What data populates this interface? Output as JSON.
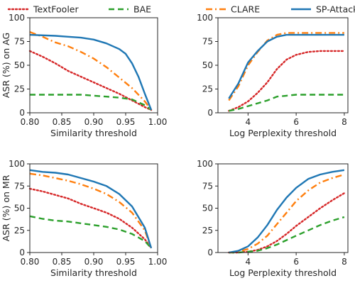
{
  "legend": {
    "placement": "top",
    "items": [
      {
        "name": "TextFooler",
        "color": "#d62728",
        "style": "dotted"
      },
      {
        "name": "BAE",
        "color": "#2ca02c",
        "style": "dashed"
      },
      {
        "name": "CLARE",
        "color": "#ff7f0e",
        "style": "dashdot"
      },
      {
        "name": "SP-Attack",
        "color": "#1f77b4",
        "style": "solid"
      }
    ]
  },
  "chart_data": [
    {
      "type": "line",
      "xlabel": "Similarity threshold",
      "ylabel": "ASR (%) on AG",
      "xlim": [
        0.8,
        1.0
      ],
      "ylim": [
        0,
        100
      ],
      "xticks": [
        "0.80",
        "0.85",
        "0.90",
        "0.95",
        "1.00"
      ],
      "yticks": [
        "0",
        "25",
        "50",
        "75",
        "100"
      ],
      "grid": false,
      "series": [
        {
          "name": "TextFooler",
          "x": [
            0.8,
            0.82,
            0.84,
            0.86,
            0.88,
            0.9,
            0.92,
            0.94,
            0.96,
            0.98,
            0.99
          ],
          "y": [
            65,
            59,
            52,
            44,
            38,
            32,
            26,
            20,
            13,
            6,
            3
          ]
        },
        {
          "name": "BAE",
          "x": [
            0.8,
            0.84,
            0.88,
            0.9,
            0.92,
            0.94,
            0.96,
            0.98,
            0.99
          ],
          "y": [
            19,
            19,
            19,
            18,
            17,
            16,
            14,
            8,
            3
          ]
        },
        {
          "name": "CLARE",
          "x": [
            0.8,
            0.82,
            0.84,
            0.86,
            0.88,
            0.9,
            0.92,
            0.94,
            0.96,
            0.98,
            0.99
          ],
          "y": [
            85,
            80,
            74,
            70,
            64,
            57,
            48,
            37,
            26,
            12,
            3
          ]
        },
        {
          "name": "SP-Attack",
          "x": [
            0.8,
            0.84,
            0.86,
            0.88,
            0.9,
            0.92,
            0.94,
            0.95,
            0.96,
            0.97,
            0.98,
            0.99
          ],
          "y": [
            82,
            81,
            80,
            79,
            77,
            73,
            67,
            62,
            52,
            38,
            20,
            3
          ]
        }
      ]
    },
    {
      "type": "line",
      "xlabel": "Log Perplexity threshold",
      "ylabel": "",
      "xlim": [
        2.75,
        8.15
      ],
      "ylim": [
        0,
        100
      ],
      "xticks": [
        "4",
        "6",
        "8"
      ],
      "yticks": [
        "0",
        "25",
        "50",
        "75",
        "100"
      ],
      "grid": false,
      "series": [
        {
          "name": "TextFooler",
          "x": [
            3.2,
            3.6,
            4.0,
            4.4,
            4.8,
            5.2,
            5.6,
            6.0,
            6.5,
            7.0,
            8.0
          ],
          "y": [
            2,
            6,
            12,
            21,
            32,
            46,
            56,
            61,
            64,
            65,
            65
          ]
        },
        {
          "name": "BAE",
          "x": [
            3.2,
            3.6,
            4.0,
            4.4,
            4.8,
            5.2,
            5.6,
            6.0,
            7.0,
            8.0
          ],
          "y": [
            2,
            4,
            7,
            10,
            13,
            17,
            18,
            19,
            19,
            19
          ]
        },
        {
          "name": "CLARE",
          "x": [
            3.2,
            3.6,
            4.0,
            4.4,
            4.8,
            5.2,
            5.6,
            6.0,
            7.0,
            8.0
          ],
          "y": [
            13,
            28,
            50,
            64,
            76,
            82,
            84,
            84,
            84,
            84
          ]
        },
        {
          "name": "SP-Attack",
          "x": [
            3.2,
            3.6,
            4.0,
            4.4,
            4.8,
            5.2,
            5.6,
            6.0,
            7.0,
            8.0
          ],
          "y": [
            15,
            31,
            53,
            65,
            75,
            80,
            82,
            82,
            82,
            82
          ]
        }
      ]
    },
    {
      "type": "line",
      "xlabel": "Similarity threshold",
      "ylabel": "ASR (%) on MR",
      "xlim": [
        0.8,
        1.0
      ],
      "ylim": [
        0,
        100
      ],
      "xticks": [
        "0.80",
        "0.85",
        "0.90",
        "0.95",
        "1.00"
      ],
      "yticks": [
        "0",
        "25",
        "50",
        "75",
        "100"
      ],
      "grid": false,
      "series": [
        {
          "name": "TextFooler",
          "x": [
            0.8,
            0.82,
            0.84,
            0.86,
            0.88,
            0.9,
            0.92,
            0.94,
            0.96,
            0.98,
            0.99
          ],
          "y": [
            72,
            69,
            65,
            61,
            55,
            50,
            45,
            38,
            28,
            15,
            5
          ]
        },
        {
          "name": "BAE",
          "x": [
            0.8,
            0.82,
            0.84,
            0.86,
            0.88,
            0.9,
            0.92,
            0.94,
            0.96,
            0.98,
            0.99
          ],
          "y": [
            41,
            38,
            36,
            35,
            33,
            31,
            29,
            26,
            21,
            13,
            5
          ]
        },
        {
          "name": "CLARE",
          "x": [
            0.8,
            0.82,
            0.84,
            0.86,
            0.88,
            0.9,
            0.92,
            0.94,
            0.96,
            0.98,
            0.99
          ],
          "y": [
            89,
            87,
            84,
            81,
            77,
            72,
            66,
            57,
            45,
            25,
            5
          ]
        },
        {
          "name": "SP-Attack",
          "x": [
            0.8,
            0.82,
            0.84,
            0.86,
            0.88,
            0.9,
            0.92,
            0.94,
            0.96,
            0.98,
            0.99
          ],
          "y": [
            93,
            91,
            90,
            88,
            84,
            80,
            75,
            66,
            52,
            28,
            5
          ]
        }
      ]
    },
    {
      "type": "line",
      "xlabel": "Log Perplexity threshold",
      "ylabel": "",
      "xlim": [
        2.75,
        8.15
      ],
      "ylim": [
        0,
        100
      ],
      "xticks": [
        "4",
        "6",
        "8"
      ],
      "yticks": [
        "0",
        "25",
        "50",
        "75",
        "100"
      ],
      "grid": false,
      "series": [
        {
          "name": "TextFooler",
          "x": [
            3.2,
            3.6,
            4.0,
            4.4,
            4.8,
            5.2,
            5.6,
            6.0,
            6.5,
            7.0,
            7.5,
            8.0
          ],
          "y": [
            0,
            0,
            1,
            3,
            7,
            13,
            21,
            30,
            40,
            50,
            59,
            67
          ]
        },
        {
          "name": "BAE",
          "x": [
            3.2,
            3.6,
            4.0,
            4.4,
            4.8,
            5.2,
            5.6,
            6.0,
            6.5,
            7.0,
            7.5,
            8.0
          ],
          "y": [
            0,
            0,
            1,
            2,
            5,
            9,
            14,
            19,
            25,
            31,
            36,
            40
          ]
        },
        {
          "name": "CLARE",
          "x": [
            3.2,
            3.6,
            4.0,
            4.4,
            4.8,
            5.2,
            5.6,
            6.0,
            6.5,
            7.0,
            7.5,
            8.0
          ],
          "y": [
            0,
            1,
            4,
            10,
            19,
            32,
            45,
            58,
            70,
            79,
            84,
            88
          ]
        },
        {
          "name": "SP-Attack",
          "x": [
            3.2,
            3.6,
            4.0,
            4.4,
            4.8,
            5.2,
            5.6,
            6.0,
            6.5,
            7.0,
            7.5,
            8.0
          ],
          "y": [
            0,
            2,
            7,
            17,
            31,
            48,
            62,
            73,
            83,
            88,
            91,
            93
          ]
        }
      ]
    }
  ]
}
